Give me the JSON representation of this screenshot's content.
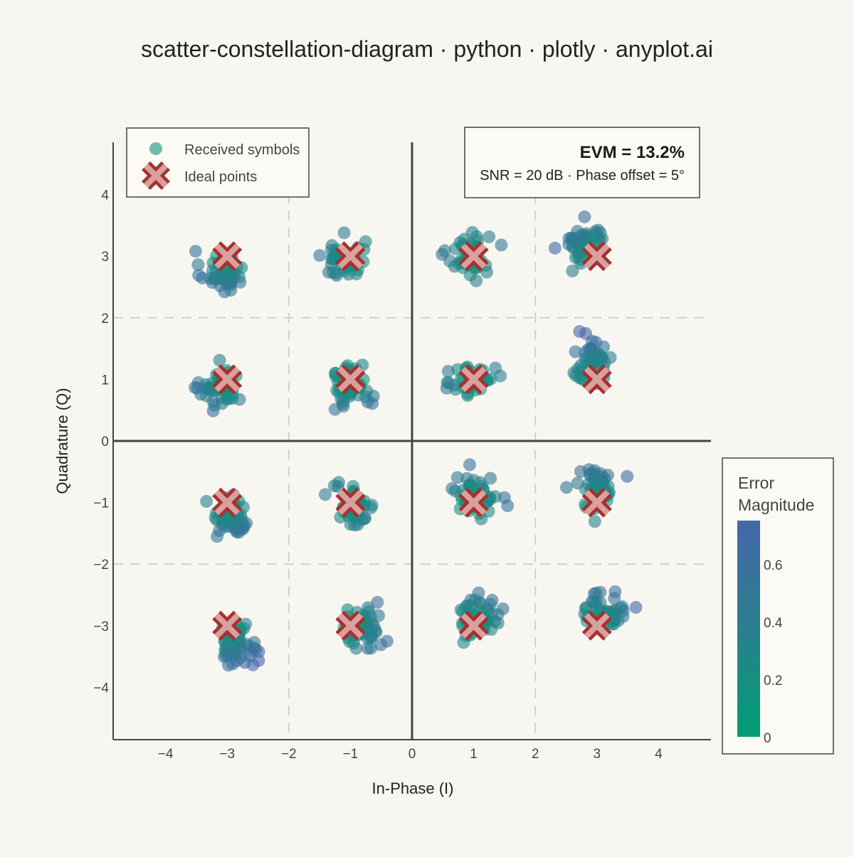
{
  "chart_data": {
    "type": "scatter",
    "title": "scatter-constellation-diagram · python · plotly · anyplot.ai",
    "xlabel": "In-Phase (I)",
    "ylabel": "Quadrature (Q)",
    "xlim": [
      -4.85,
      4.85
    ],
    "ylim": [
      -4.85,
      4.85
    ],
    "x_ticks": [
      -4,
      -3,
      -2,
      -1,
      0,
      1,
      2,
      3,
      4
    ],
    "y_ticks": [
      -4,
      -3,
      -2,
      -1,
      0,
      1,
      2,
      3,
      4
    ],
    "x_tick_labels": [
      "−4",
      "−3",
      "−2",
      "−1",
      "0",
      "1",
      "2",
      "3",
      "4"
    ],
    "y_tick_labels": [
      "−4",
      "−3",
      "−2",
      "−1",
      "0",
      "1",
      "2",
      "3",
      "4"
    ],
    "decision_boundaries": [
      -2,
      2
    ],
    "legend": {
      "position": "top-left",
      "received_label": "Received symbols",
      "ideal_label": "Ideal points"
    },
    "annotation": {
      "evm_text": "EVM = 13.2%",
      "snr_text": "SNR = 20 dB · Phase offset = 5°"
    },
    "colorbar": {
      "title_line1": "Error",
      "title_line2": "Magnitude",
      "range": [
        0,
        0.75
      ],
      "ticks": [
        0,
        0.2,
        0.4,
        0.6
      ],
      "tick_labels": [
        "0",
        "0.2",
        "0.4",
        "0.6"
      ],
      "color_low": "#009E73",
      "color_mid": "#2A7F8E",
      "color_high": "#4467A8"
    },
    "colors": {
      "ideal_marker": "#A8302E",
      "background": "#F8F6F1",
      "axis": "#444444",
      "grid_dash": "#D4D0C8"
    },
    "ideal_points": [
      [
        -3,
        3
      ],
      [
        -1,
        3
      ],
      [
        1,
        3
      ],
      [
        3,
        3
      ],
      [
        -3,
        1
      ],
      [
        -1,
        1
      ],
      [
        1,
        1
      ],
      [
        3,
        1
      ],
      [
        -3,
        -1
      ],
      [
        -1,
        -1
      ],
      [
        1,
        -1
      ],
      [
        3,
        -1
      ],
      [
        -3,
        -3
      ],
      [
        -1,
        -3
      ],
      [
        1,
        -3
      ],
      [
        3,
        -3
      ]
    ],
    "received_clusters": [
      {
        "ideal": [
          -3,
          3
        ],
        "center": [
          -3.1,
          2.75
        ],
        "count": 48
      },
      {
        "ideal": [
          -1,
          3
        ],
        "center": [
          -1.1,
          2.95
        ],
        "count": 48
      },
      {
        "ideal": [
          1,
          3
        ],
        "center": [
          0.9,
          3.05
        ],
        "count": 48
      },
      {
        "ideal": [
          3,
          3
        ],
        "center": [
          2.8,
          3.2
        ],
        "count": 48
      },
      {
        "ideal": [
          -3,
          1
        ],
        "center": [
          -3.1,
          0.85
        ],
        "count": 48
      },
      {
        "ideal": [
          -1,
          1
        ],
        "center": [
          -1.0,
          0.9
        ],
        "count": 48
      },
      {
        "ideal": [
          1,
          1
        ],
        "center": [
          1.0,
          1.0
        ],
        "count": 48
      },
      {
        "ideal": [
          3,
          1
        ],
        "center": [
          2.9,
          1.3
        ],
        "count": 48
      },
      {
        "ideal": [
          -3,
          -1
        ],
        "center": [
          -2.9,
          -1.25
        ],
        "count": 48
      },
      {
        "ideal": [
          -1,
          -1
        ],
        "center": [
          -0.95,
          -1.05
        ],
        "count": 48
      },
      {
        "ideal": [
          1,
          -1
        ],
        "center": [
          1.05,
          -0.9
        ],
        "count": 48
      },
      {
        "ideal": [
          3,
          -1
        ],
        "center": [
          3.0,
          -0.75
        ],
        "count": 48
      },
      {
        "ideal": [
          -3,
          -3
        ],
        "center": [
          -2.85,
          -3.3
        ],
        "count": 48
      },
      {
        "ideal": [
          -1,
          -3
        ],
        "center": [
          -0.8,
          -3.05
        ],
        "count": 48
      },
      {
        "ideal": [
          1,
          -3
        ],
        "center": [
          1.1,
          -2.85
        ],
        "count": 48
      },
      {
        "ideal": [
          3,
          -3
        ],
        "center": [
          3.15,
          -2.75
        ],
        "count": 48
      }
    ]
  }
}
